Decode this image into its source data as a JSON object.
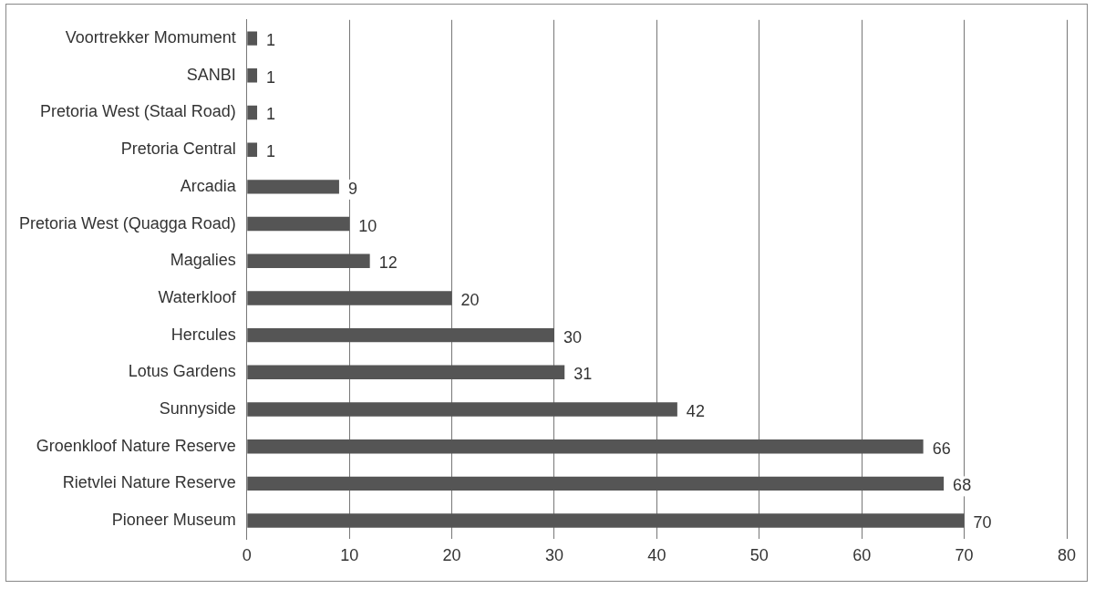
{
  "chart_data": {
    "type": "bar",
    "orientation": "horizontal",
    "categories": [
      "Voortrekker Momument",
      "SANBI",
      "Pretoria West (Staal Road)",
      "Pretoria Central",
      "Arcadia",
      "Pretoria West (Quagga Road)",
      "Magalies",
      "Waterkloof",
      "Hercules",
      "Lotus Gardens",
      "Sunnyside",
      "Groenkloof Nature Reserve",
      "Rietvlei Nature Reserve",
      "Pioneer Museum"
    ],
    "values": [
      1,
      1,
      1,
      1,
      9,
      10,
      12,
      20,
      30,
      31,
      42,
      66,
      68,
      70
    ],
    "color": "#555555",
    "xlim": [
      0,
      80
    ],
    "xticks": [
      0,
      10,
      20,
      30,
      40,
      50,
      60,
      70,
      80
    ],
    "grid": "x",
    "data_labels": true,
    "legend": false
  }
}
